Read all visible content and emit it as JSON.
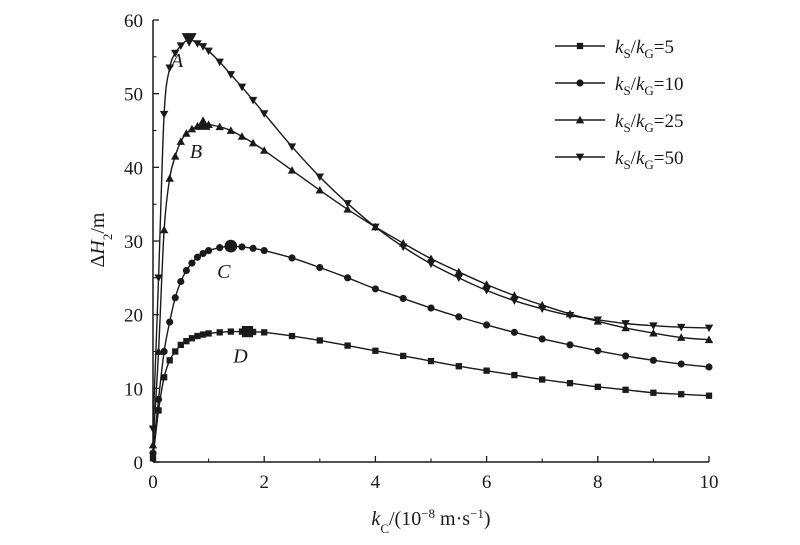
{
  "chart_data": {
    "type": "line",
    "title": "",
    "xlabel": {
      "var": "k",
      "sub": "C",
      "units": "/(10",
      "exp": "−8",
      "units2": " m·s",
      "exp2": "−1",
      "close": ")"
    },
    "ylabel": {
      "prefix": "Δ",
      "var": "H",
      "sub": "2",
      "units": "/m"
    },
    "xlim": [
      0,
      10
    ],
    "ylim": [
      0,
      60
    ],
    "x_ticks": [
      "0",
      "2",
      "4",
      "6",
      "8",
      "10"
    ],
    "y_ticks": [
      "0",
      "10",
      "20",
      "30",
      "40",
      "50",
      "60"
    ],
    "grid": false,
    "legend_position": "top-right",
    "series": [
      {
        "name": "kS/kG=5",
        "legend": {
          "v1": "k",
          "s1": "S",
          "v2": "k",
          "s2": "G",
          "eq": "=5"
        },
        "marker": "square",
        "peak": {
          "x": 1.7,
          "y": 17.7,
          "label": "D"
        },
        "x": [
          0,
          0.1,
          0.2,
          0.3,
          0.4,
          0.5,
          0.6,
          0.7,
          0.8,
          0.9,
          1.0,
          1.2,
          1.4,
          1.6,
          1.8,
          2.0,
          2.5,
          3.0,
          3.5,
          4.0,
          4.5,
          5.0,
          5.5,
          6.0,
          6.5,
          7.0,
          7.5,
          8.0,
          8.5,
          9.0,
          9.5,
          10.0
        ],
        "y": [
          0.5,
          7.0,
          11.5,
          13.8,
          15.0,
          15.9,
          16.4,
          16.8,
          17.1,
          17.3,
          17.45,
          17.6,
          17.7,
          17.7,
          17.65,
          17.6,
          17.1,
          16.5,
          15.8,
          15.1,
          14.4,
          13.7,
          13.0,
          12.4,
          11.8,
          11.2,
          10.7,
          10.2,
          9.8,
          9.4,
          9.2,
          9.0
        ]
      },
      {
        "name": "kS/kG=10",
        "legend": {
          "v1": "k",
          "s1": "S",
          "v2": "k",
          "s2": "G",
          "eq": "=10"
        },
        "marker": "circle",
        "peak": {
          "x": 1.4,
          "y": 29.3,
          "label": "C"
        },
        "x": [
          0,
          0.1,
          0.2,
          0.3,
          0.4,
          0.5,
          0.6,
          0.7,
          0.8,
          0.9,
          1.0,
          1.2,
          1.4,
          1.6,
          1.8,
          2.0,
          2.5,
          3.0,
          3.5,
          4.0,
          4.5,
          5.0,
          5.5,
          6.0,
          6.5,
          7.0,
          7.5,
          8.0,
          8.5,
          9.0,
          9.5,
          10.0
        ],
        "y": [
          1.2,
          8.5,
          15.0,
          19.0,
          22.3,
          24.5,
          26.0,
          27.0,
          27.8,
          28.3,
          28.7,
          29.1,
          29.3,
          29.2,
          29.0,
          28.7,
          27.7,
          26.4,
          25.0,
          23.5,
          22.2,
          20.9,
          19.7,
          18.6,
          17.6,
          16.7,
          15.9,
          15.1,
          14.4,
          13.8,
          13.3,
          12.9
        ]
      },
      {
        "name": "kS/kG=25",
        "legend": {
          "v1": "k",
          "s1": "S",
          "v2": "k",
          "s2": "G",
          "eq": "=25"
        },
        "marker": "triangle-up",
        "peak": {
          "x": 0.9,
          "y": 45.9,
          "label": "B"
        },
        "x": [
          0,
          0.1,
          0.2,
          0.3,
          0.4,
          0.5,
          0.6,
          0.7,
          0.8,
          0.9,
          1.0,
          1.2,
          1.4,
          1.6,
          1.8,
          2.0,
          2.5,
          3.0,
          3.5,
          4.0,
          4.5,
          5.0,
          5.5,
          6.0,
          6.5,
          7.0,
          7.5,
          8.0,
          8.5,
          9.0,
          9.5,
          10.0
        ],
        "y": [
          2.3,
          15.0,
          31.5,
          38.5,
          41.5,
          43.5,
          44.6,
          45.2,
          45.6,
          45.9,
          45.8,
          45.5,
          45.0,
          44.2,
          43.3,
          42.3,
          39.6,
          36.9,
          34.3,
          31.9,
          29.7,
          27.6,
          25.8,
          24.1,
          22.6,
          21.3,
          20.1,
          19.1,
          18.2,
          17.5,
          16.9,
          16.6
        ]
      },
      {
        "name": "kS/kG=50",
        "legend": {
          "v1": "k",
          "s1": "S",
          "v2": "k",
          "s2": "G",
          "eq": "=50"
        },
        "marker": "triangle-down",
        "peak": {
          "x": 0.65,
          "y": 57.4,
          "label": "A"
        },
        "x": [
          0,
          0.1,
          0.2,
          0.3,
          0.4,
          0.5,
          0.65,
          0.8,
          0.9,
          1.0,
          1.2,
          1.4,
          1.6,
          1.8,
          2.0,
          2.5,
          3.0,
          3.5,
          4.0,
          4.5,
          5.0,
          5.5,
          6.0,
          6.5,
          7.0,
          7.5,
          8.0,
          8.5,
          9.0,
          9.5,
          10.0
        ],
        "y": [
          4.5,
          25.0,
          47.2,
          53.5,
          55.5,
          56.5,
          57.4,
          56.8,
          56.4,
          55.8,
          54.3,
          52.6,
          50.9,
          49.1,
          47.3,
          42.8,
          38.7,
          35.1,
          31.9,
          29.2,
          26.9,
          25.0,
          23.3,
          21.9,
          20.8,
          19.9,
          19.3,
          18.8,
          18.5,
          18.3,
          18.2
        ]
      }
    ]
  }
}
